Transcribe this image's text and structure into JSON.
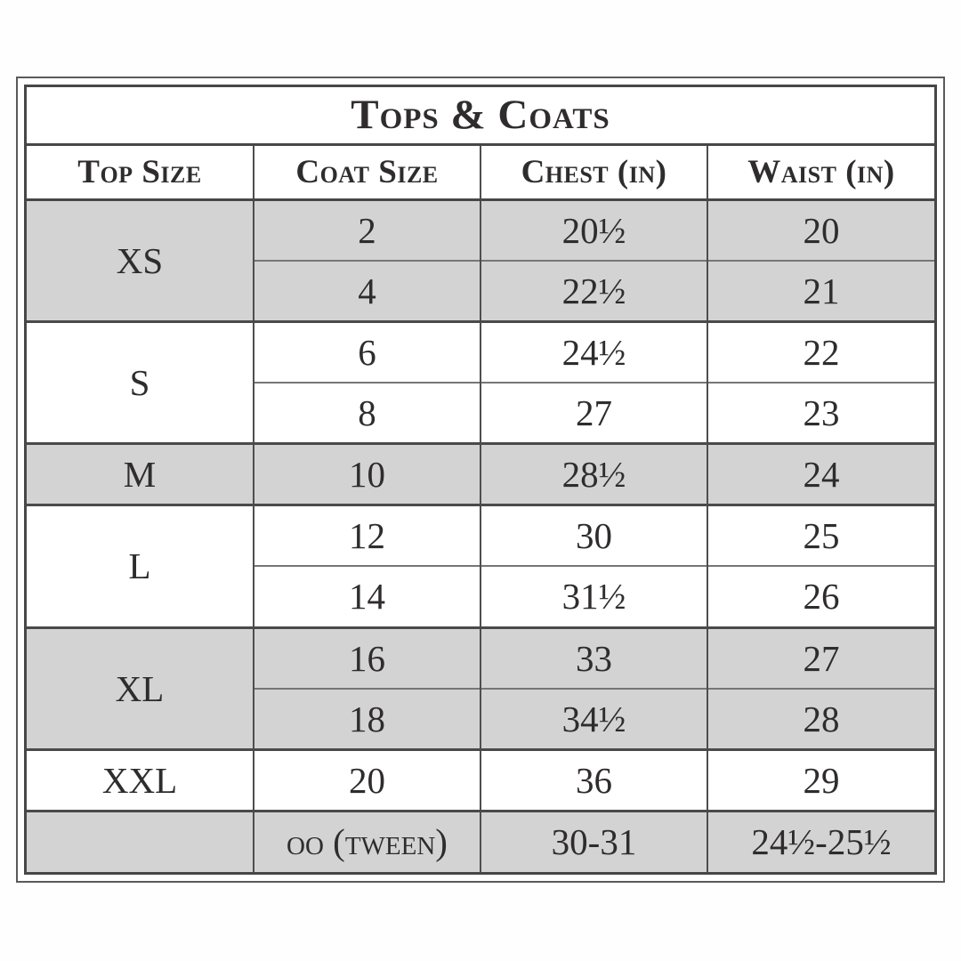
{
  "table": {
    "title": "Tops & Coats",
    "columns": [
      {
        "label": "Top Size"
      },
      {
        "label": "Coat Size"
      },
      {
        "label": "Chest (in)"
      },
      {
        "label": "Waist (in)"
      }
    ],
    "groups": [
      {
        "top_size": "XS",
        "shaded": true,
        "rows": [
          [
            "2",
            "20½",
            "20"
          ],
          [
            "4",
            "22½",
            "21"
          ]
        ]
      },
      {
        "top_size": "S",
        "shaded": false,
        "rows": [
          [
            "6",
            "24½",
            "22"
          ],
          [
            "8",
            "27",
            "23"
          ]
        ]
      },
      {
        "top_size": "M",
        "shaded": true,
        "rows": [
          [
            "10",
            "28½",
            "24"
          ]
        ]
      },
      {
        "top_size": "L",
        "shaded": false,
        "rows": [
          [
            "12",
            "30",
            "25"
          ],
          [
            "14",
            "31½",
            "26"
          ]
        ]
      },
      {
        "top_size": "XL",
        "shaded": true,
        "rows": [
          [
            "16",
            "33",
            "27"
          ],
          [
            "18",
            "34½",
            "28"
          ]
        ]
      },
      {
        "top_size": "XXL",
        "shaded": false,
        "rows": [
          [
            "20",
            "36",
            "29"
          ]
        ]
      },
      {
        "top_size": "",
        "shaded": true,
        "rows": [
          [
            "oo (tween)",
            "30-31",
            "24½-25½"
          ]
        ]
      }
    ],
    "colors": {
      "shaded_row": "#d3d3d4",
      "border_heavy": "#474747",
      "border_light": "#767676",
      "text": "#2f2c2d",
      "background": "#ffffff"
    }
  }
}
